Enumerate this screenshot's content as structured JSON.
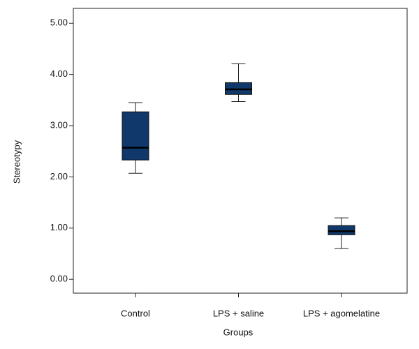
{
  "chart_data": {
    "type": "box",
    "x_label": "Groups",
    "y_label": "Stereotypy",
    "categories": [
      "Control",
      "LPS + saline",
      "LPS + agomelatine"
    ],
    "color": "#11386a",
    "boxes": [
      {
        "whisker_low": 2.07,
        "q1": 2.33,
        "median": 2.57,
        "q3": 3.27,
        "whisker_high": 3.45
      },
      {
        "whisker_low": 3.47,
        "q1": 3.61,
        "median": 3.71,
        "q3": 3.84,
        "whisker_high": 4.21
      },
      {
        "whisker_low": 0.6,
        "q1": 0.87,
        "median": 0.94,
        "q3": 1.05,
        "whisker_high": 1.2
      }
    ],
    "ylim": [
      -0.27,
      5.29
    ],
    "yticks": [
      {
        "value": 0,
        "label": "0.00"
      },
      {
        "value": 1,
        "label": "1.00"
      },
      {
        "value": 2,
        "label": "2.00"
      },
      {
        "value": 3,
        "label": "3.00"
      },
      {
        "value": 4,
        "label": "4.00"
      },
      {
        "value": 5,
        "label": "5.00"
      }
    ]
  }
}
